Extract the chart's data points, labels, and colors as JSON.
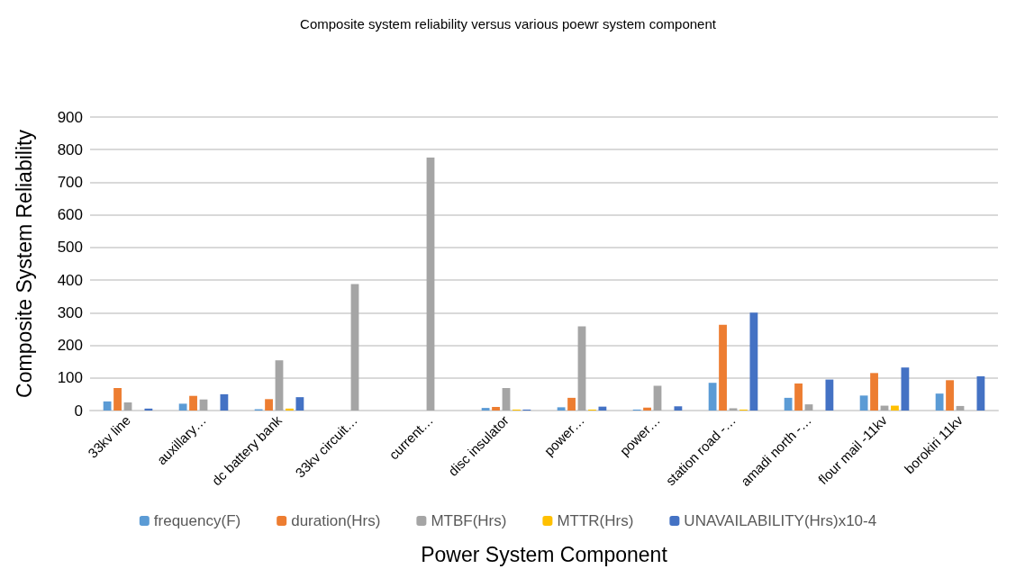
{
  "chart_data": {
    "type": "bar",
    "title": "Composite system reliability versus various poewr system component",
    "xlabel": "Power System Component",
    "ylabel": "Composite System Reliability",
    "categories": [
      "33kv line",
      "auxillary…",
      "dc battery bank",
      "33kv circuit…",
      "current…",
      "disc insulator",
      "power…",
      "power…",
      "station road -…",
      "amadi north -…",
      "flour mail -11kv",
      "borokiri 11kv"
    ],
    "series": [
      {
        "name": "frequency(F)",
        "color": "#5b9bd5",
        "values": [
          28,
          21,
          4,
          0,
          0,
          8,
          10,
          3,
          85,
          39,
          46,
          52
        ]
      },
      {
        "name": "duration(Hrs)",
        "color": "#ed7d31",
        "values": [
          69,
          45,
          35,
          0,
          0,
          11,
          39,
          9,
          263,
          83,
          115,
          93
        ]
      },
      {
        "name": "MTBF(Hrs)",
        "color": "#a5a5a5",
        "values": [
          25,
          34,
          154,
          388,
          776,
          69,
          258,
          76,
          7,
          19,
          15,
          14
        ]
      },
      {
        "name": "MTTR(Hrs)",
        "color": "#ffc000",
        "values": [
          0,
          0,
          6,
          0,
          0,
          3,
          3,
          0,
          3,
          0,
          15,
          0
        ]
      },
      {
        "name": "UNAVAILABILITY(Hrs)x10-4",
        "color": "#4472c4",
        "values": [
          6,
          50,
          41,
          0,
          0,
          3,
          12,
          13,
          300,
          95,
          132,
          105
        ]
      }
    ],
    "ylim": [
      0,
      900
    ],
    "yticks": [
      0,
      100,
      200,
      300,
      400,
      500,
      600,
      700,
      800,
      900
    ],
    "grid": "y",
    "legend": "bottom"
  }
}
